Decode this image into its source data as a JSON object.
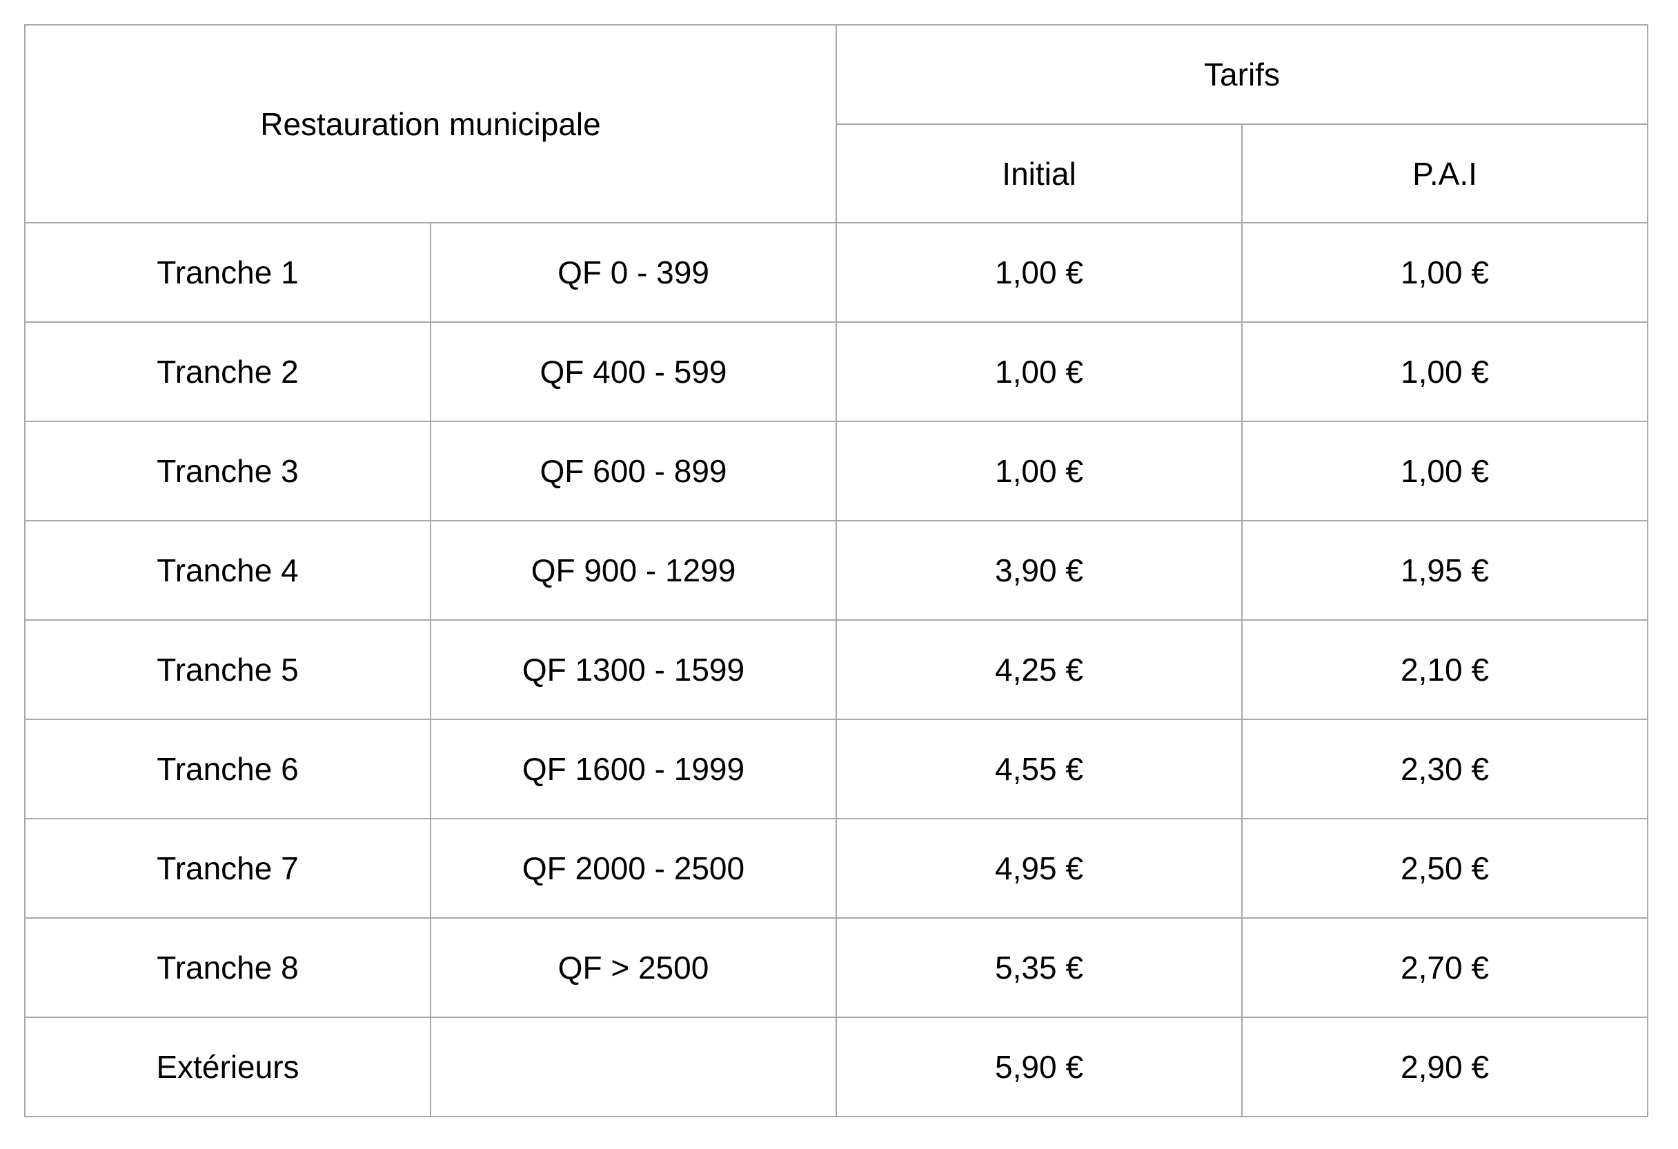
{
  "table": {
    "header": {
      "restauration": "Restauration municipale",
      "tarifs": "Tarifs",
      "initial": "Initial",
      "pai": "P.A.I"
    },
    "rows": [
      {
        "label": "Tranche 1",
        "qf": "QF 0 - 399",
        "initial": "1,00 €",
        "pai": "1,00 €"
      },
      {
        "label": "Tranche 2",
        "qf": "QF 400 - 599",
        "initial": "1,00 €",
        "pai": "1,00 €"
      },
      {
        "label": "Tranche 3",
        "qf": "QF 600 - 899",
        "initial": "1,00 €",
        "pai": "1,00 €"
      },
      {
        "label": "Tranche 4",
        "qf": "QF 900 - 1299",
        "initial": "3,90 €",
        "pai": "1,95 €"
      },
      {
        "label": "Tranche 5",
        "qf": "QF 1300 - 1599",
        "initial": "4,25 €",
        "pai": "2,10 €"
      },
      {
        "label": "Tranche 6",
        "qf": "QF 1600 - 1999",
        "initial": "4,55 €",
        "pai": "2,30 €"
      },
      {
        "label": "Tranche 7",
        "qf": "QF 2000 - 2500",
        "initial": "4,95 €",
        "pai": "2,50 €"
      },
      {
        "label": "Tranche 8",
        "qf": "QF > 2500",
        "initial": "5,35 €",
        "pai": "2,70 €"
      },
      {
        "label": "Extérieurs",
        "qf": "",
        "initial": "5,90 €",
        "pai": "2,90 €"
      }
    ],
    "colors": {
      "border": "#a9a9a9",
      "text": "#000000",
      "background": "#ffffff"
    }
  }
}
